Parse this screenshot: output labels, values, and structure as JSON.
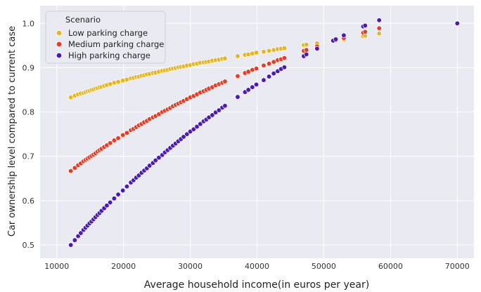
{
  "chart_data": {
    "type": "scatter",
    "title": "",
    "xlabel": "Average household income(in euros per year)",
    "ylabel": "Car ownership level compared to current case",
    "xlim": [
      7500,
      72500
    ],
    "ylim": [
      0.47,
      1.04
    ],
    "x_ticks": [
      10000,
      20000,
      30000,
      40000,
      50000,
      60000,
      70000
    ],
    "x_tick_labels": [
      "10000",
      "20000",
      "30000",
      "40000",
      "50000",
      "60000",
      "70000"
    ],
    "y_ticks": [
      0.5,
      0.6,
      0.7,
      0.8,
      0.9,
      1.0
    ],
    "y_tick_labels": [
      "0.5",
      "0.6",
      "0.7",
      "0.8",
      "0.9",
      "1.0"
    ],
    "grid": true,
    "legend": {
      "title": "Scenario",
      "placement": "top-left"
    },
    "x": [
      12100,
      12700,
      13200,
      13600,
      14000,
      14300,
      14600,
      14900,
      15200,
      15500,
      15800,
      16100,
      16400,
      16700,
      17100,
      17500,
      18000,
      18600,
      19200,
      19900,
      20500,
      21100,
      21500,
      21900,
      22300,
      22700,
      23100,
      23500,
      23900,
      24400,
      24800,
      25300,
      25800,
      26200,
      26600,
      27000,
      27400,
      27800,
      28200,
      28600,
      29000,
      29500,
      30000,
      30500,
      31000,
      31500,
      32000,
      32400,
      32800,
      33300,
      33800,
      34300,
      34800,
      35200,
      37100,
      38200,
      38700,
      39300,
      39900,
      41000,
      41800,
      42500,
      43100,
      43600,
      44100,
      47000,
      47400,
      49000,
      51400,
      51800,
      53000,
      55900,
      56200,
      58300,
      70000
    ],
    "series": [
      {
        "name": "Low parking charge",
        "color": "#e6b620",
        "values": [
          0.833,
          0.837,
          0.84,
          0.842,
          0.843,
          0.845,
          0.847,
          0.848,
          0.85,
          0.851,
          0.853,
          0.854,
          0.856,
          0.857,
          0.859,
          0.861,
          0.863,
          0.866,
          0.868,
          0.871,
          0.873,
          0.876,
          0.877,
          0.879,
          0.88,
          0.882,
          0.883,
          0.885,
          0.886,
          0.888,
          0.889,
          0.891,
          0.893,
          0.894,
          0.895,
          0.897,
          0.898,
          0.899,
          0.901,
          0.902,
          0.903,
          0.905,
          0.906,
          0.908,
          0.909,
          0.911,
          0.912,
          0.913,
          0.914,
          0.916,
          0.917,
          0.918,
          0.92,
          0.921,
          0.926,
          0.929,
          0.93,
          0.932,
          0.934,
          0.936,
          0.938,
          0.94,
          0.942,
          0.943,
          0.944,
          0.951,
          0.952,
          0.955,
          0.961,
          0.962,
          0.964,
          0.971,
          0.972,
          0.977,
          null
        ]
      },
      {
        "name": "Medium parking charge",
        "color": "#ea3b23",
        "values": [
          0.667,
          0.674,
          0.68,
          0.684,
          0.689,
          0.692,
          0.695,
          0.698,
          0.701,
          0.704,
          0.707,
          0.711,
          0.714,
          0.717,
          0.721,
          0.725,
          0.73,
          0.736,
          0.741,
          0.748,
          0.753,
          0.759,
          0.762,
          0.766,
          0.77,
          0.773,
          0.777,
          0.78,
          0.784,
          0.788,
          0.791,
          0.795,
          0.8,
          0.803,
          0.806,
          0.809,
          0.813,
          0.816,
          0.819,
          0.822,
          0.825,
          0.829,
          0.833,
          0.836,
          0.84,
          0.844,
          0.847,
          0.85,
          0.853,
          0.856,
          0.86,
          0.863,
          0.866,
          0.869,
          0.881,
          0.888,
          0.891,
          0.895,
          0.898,
          0.905,
          0.909,
          0.913,
          0.917,
          0.919,
          0.922,
          0.938,
          0.94,
          0.948,
          0.96,
          0.962,
          0.967,
          0.979,
          0.981,
          0.989,
          null
        ]
      },
      {
        "name": "High parking charge",
        "color": "#4a1ab8",
        "values": [
          0.5,
          0.511,
          0.52,
          0.527,
          0.534,
          0.539,
          0.544,
          0.549,
          0.553,
          0.558,
          0.563,
          0.568,
          0.572,
          0.577,
          0.583,
          0.589,
          0.596,
          0.605,
          0.614,
          0.623,
          0.632,
          0.641,
          0.646,
          0.652,
          0.657,
          0.663,
          0.668,
          0.673,
          0.679,
          0.685,
          0.691,
          0.697,
          0.703,
          0.709,
          0.714,
          0.719,
          0.724,
          0.729,
          0.734,
          0.739,
          0.744,
          0.75,
          0.756,
          0.761,
          0.767,
          0.773,
          0.779,
          0.783,
          0.788,
          0.793,
          0.799,
          0.804,
          0.81,
          0.814,
          0.834,
          0.845,
          0.85,
          0.856,
          0.862,
          0.872,
          0.88,
          0.887,
          0.892,
          0.897,
          0.901,
          0.926,
          0.93,
          0.943,
          0.961,
          0.964,
          0.973,
          0.993,
          0.995,
          1.007,
          1.0
        ]
      }
    ]
  }
}
